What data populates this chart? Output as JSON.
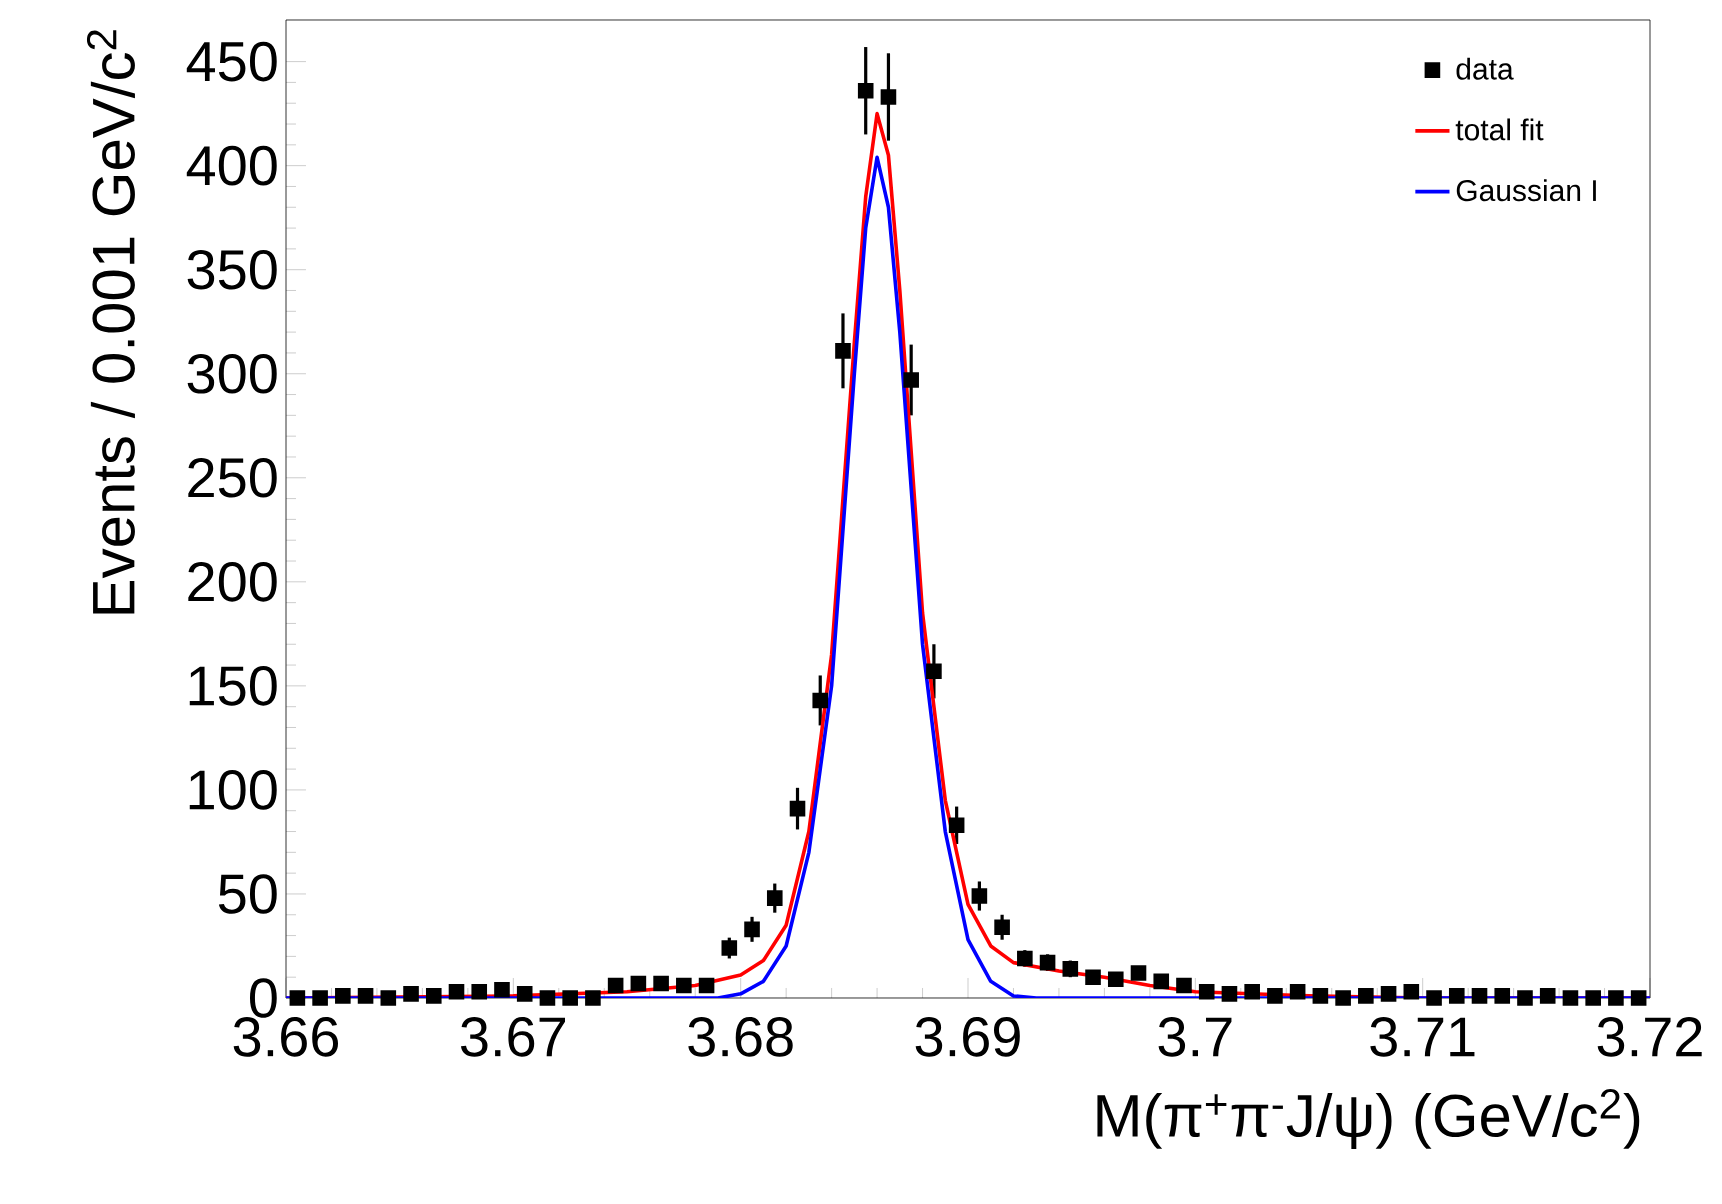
{
  "chart_data": {
    "type": "scatter",
    "xlabel": "M(π$^{+}$π$^{-}$J/ψ) (GeV/c$^{2}$)",
    "ylabel": "Events / 0.001 GeV/c$^{2}$",
    "xlim": [
      3.66,
      3.72
    ],
    "ylim": [
      0,
      470
    ],
    "xticks": [
      3.66,
      3.67,
      3.68,
      3.69,
      3.7,
      3.71,
      3.72
    ],
    "yticks": [
      0,
      50,
      100,
      150,
      200,
      250,
      300,
      350,
      400,
      450
    ],
    "grid": false,
    "legend": "top right",
    "series": [
      {
        "name": "data",
        "color": "#000000",
        "marker": "square",
        "x": [
          3.6605,
          3.6615,
          3.6625,
          3.6635,
          3.6645,
          3.6655,
          3.6665,
          3.6675,
          3.6685,
          3.6695,
          3.6705,
          3.6715,
          3.6725,
          3.6735,
          3.6745,
          3.6755,
          3.6765,
          3.6775,
          3.6785,
          3.6795,
          3.6805,
          3.6815,
          3.6825,
          3.6835,
          3.6845,
          3.6855,
          3.6865,
          3.6875,
          3.6885,
          3.6895,
          3.6905,
          3.6915,
          3.6925,
          3.6935,
          3.6945,
          3.6955,
          3.6965,
          3.6975,
          3.6985,
          3.6995,
          3.7005,
          3.7015,
          3.7025,
          3.7035,
          3.7045,
          3.7055,
          3.7065,
          3.7075,
          3.7085,
          3.7095,
          3.7105,
          3.7115,
          3.7125,
          3.7135,
          3.7145,
          3.7155,
          3.7165,
          3.7175,
          3.7185,
          3.7195
        ],
        "values": [
          0,
          0,
          1,
          1,
          0,
          2,
          1,
          3,
          3,
          4,
          2,
          0,
          0,
          0,
          6,
          7,
          7,
          6,
          6,
          24,
          33,
          48,
          91,
          143,
          311,
          436,
          433,
          297,
          157,
          83,
          49,
          34,
          19,
          17,
          14,
          10,
          9,
          12,
          8,
          6,
          3,
          2,
          3,
          1,
          3,
          1,
          0,
          1,
          2,
          3,
          0,
          1,
          1,
          1,
          0,
          1,
          0,
          0,
          0,
          0
        ],
        "errors": [
          null,
          null,
          1,
          1,
          null,
          1,
          1,
          2,
          2,
          2,
          1,
          null,
          null,
          null,
          2,
          3,
          3,
          2,
          2,
          5,
          6,
          7,
          10,
          12,
          18,
          21,
          21,
          17,
          13,
          9,
          7,
          6,
          4,
          4,
          4,
          3,
          3,
          3,
          3,
          2,
          2,
          1,
          2,
          1,
          2,
          1,
          null,
          1,
          1,
          2,
          null,
          1,
          1,
          1,
          null,
          1,
          null,
          null,
          null,
          null
        ]
      },
      {
        "name": "total fit",
        "type": "line",
        "color": "#ff0000",
        "x": [
          3.66,
          3.67,
          3.675,
          3.678,
          3.68,
          3.681,
          3.682,
          3.683,
          3.684,
          3.685,
          3.6855,
          3.686,
          3.6865,
          3.687,
          3.688,
          3.689,
          3.69,
          3.691,
          3.692,
          3.694,
          3.696,
          3.698,
          3.7,
          3.705,
          3.71,
          3.72
        ],
        "values": [
          0,
          1,
          3,
          6,
          11,
          18,
          35,
          80,
          165,
          315,
          385,
          425,
          405,
          340,
          185,
          95,
          45,
          25,
          17,
          13,
          10,
          6,
          3,
          1,
          0,
          0
        ]
      },
      {
        "name": "Gaussian I",
        "type": "line",
        "color": "#0000ff",
        "x": [
          3.66,
          3.679,
          3.68,
          3.681,
          3.682,
          3.683,
          3.684,
          3.685,
          3.6855,
          3.686,
          3.6865,
          3.687,
          3.688,
          3.689,
          3.69,
          3.691,
          3.692,
          3.693,
          3.72
        ],
        "values": [
          0,
          0,
          2,
          8,
          25,
          70,
          150,
          300,
          370,
          404,
          380,
          320,
          170,
          80,
          28,
          8,
          1,
          0,
          0
        ]
      }
    ]
  }
}
